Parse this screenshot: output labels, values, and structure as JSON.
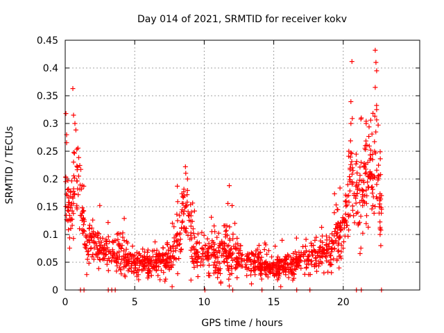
{
  "chart_data": {
    "type": "scatter",
    "title": "Day 014 of 2021, SRMTID for receiver kokv",
    "xlabel": "GPS time / hours",
    "ylabel": "SRMTID / TECUs",
    "xlim": [
      0,
      25.5
    ],
    "ylim": [
      0,
      0.45
    ],
    "xticks": [
      0,
      5,
      10,
      15,
      20
    ],
    "xtick_labels": [
      "0",
      "5",
      "10",
      "15",
      "20"
    ],
    "yticks": [
      0,
      0.05,
      0.1,
      0.15,
      0.2,
      0.25,
      0.3,
      0.35,
      0.4,
      0.45
    ],
    "ytick_labels": [
      "0",
      "0.05",
      "0.1",
      "0.15",
      "0.2",
      "0.25",
      "0.3",
      "0.35",
      "0.4",
      "0.45"
    ],
    "grid": true,
    "marker": "+",
    "color": "#ff0000",
    "series": [
      {
        "name": "SRMTID",
        "envelope": {
          "hours": [
            0.0,
            0.25,
            0.5,
            0.75,
            1.0,
            1.25,
            1.5,
            2.0,
            2.5,
            3.0,
            3.5,
            4.0,
            4.5,
            5.0,
            5.5,
            6.0,
            6.5,
            7.0,
            7.5,
            8.0,
            8.5,
            8.75,
            9.0,
            9.5,
            10.0,
            10.5,
            11.0,
            11.5,
            12.0,
            12.5,
            13.0,
            13.5,
            14.0,
            14.5,
            15.0,
            15.5,
            16.0,
            16.5,
            17.0,
            17.5,
            18.0,
            18.5,
            19.0,
            19.5,
            20.0,
            20.25,
            20.5,
            20.75,
            21.0,
            21.5,
            22.0,
            22.5,
            22.75
          ],
          "median": [
            0.2,
            0.15,
            0.14,
            0.24,
            0.18,
            0.14,
            0.08,
            0.08,
            0.07,
            0.07,
            0.06,
            0.06,
            0.05,
            0.045,
            0.045,
            0.045,
            0.05,
            0.05,
            0.05,
            0.08,
            0.13,
            0.15,
            0.1,
            0.06,
            0.06,
            0.07,
            0.06,
            0.07,
            0.06,
            0.05,
            0.055,
            0.045,
            0.045,
            0.04,
            0.04,
            0.04,
            0.045,
            0.045,
            0.055,
            0.06,
            0.06,
            0.065,
            0.07,
            0.09,
            0.11,
            0.15,
            0.21,
            0.17,
            0.15,
            0.18,
            0.22,
            0.2,
            0.13
          ],
          "spread": [
            0.08,
            0.06,
            0.05,
            0.08,
            0.05,
            0.05,
            0.035,
            0.035,
            0.03,
            0.03,
            0.025,
            0.025,
            0.022,
            0.02,
            0.02,
            0.022,
            0.025,
            0.025,
            0.025,
            0.035,
            0.05,
            0.05,
            0.04,
            0.025,
            0.025,
            0.03,
            0.03,
            0.04,
            0.035,
            0.025,
            0.025,
            0.02,
            0.018,
            0.017,
            0.017,
            0.017,
            0.018,
            0.02,
            0.02,
            0.02,
            0.022,
            0.025,
            0.028,
            0.035,
            0.04,
            0.05,
            0.07,
            0.06,
            0.06,
            0.07,
            0.08,
            0.09,
            0.05
          ]
        },
        "samples_per_hour": 62,
        "highlights": [
          {
            "x": 0.55,
            "y": 0.363
          },
          {
            "x": 0.05,
            "y": 0.318
          },
          {
            "x": 0.6,
            "y": 0.315
          },
          {
            "x": 0.7,
            "y": 0.3
          },
          {
            "x": 8.65,
            "y": 0.222
          },
          {
            "x": 8.8,
            "y": 0.2
          },
          {
            "x": 11.8,
            "y": 0.188
          },
          {
            "x": 12.0,
            "y": 0.152
          },
          {
            "x": 12.2,
            "y": 0.12
          },
          {
            "x": 20.4,
            "y": 0.25
          },
          {
            "x": 20.55,
            "y": 0.3
          },
          {
            "x": 20.65,
            "y": 0.309
          },
          {
            "x": 21.3,
            "y": 0.31
          },
          {
            "x": 21.65,
            "y": 0.3
          },
          {
            "x": 22.3,
            "y": 0.432
          },
          {
            "x": 22.35,
            "y": 0.41
          },
          {
            "x": 22.4,
            "y": 0.395
          },
          {
            "x": 22.3,
            "y": 0.365
          },
          {
            "x": 22.4,
            "y": 0.325
          },
          {
            "x": 22.6,
            "y": 0.15
          },
          {
            "x": 22.65,
            "y": 0.1
          },
          {
            "x": 22.7,
            "y": 0.08
          }
        ],
        "zero_markers": [
          1.1,
          1.35,
          3.1,
          3.35,
          3.6,
          10.05,
          12.05,
          14.15,
          16.65,
          17.6,
          20.95,
          21.3,
          22.75
        ]
      }
    ]
  }
}
